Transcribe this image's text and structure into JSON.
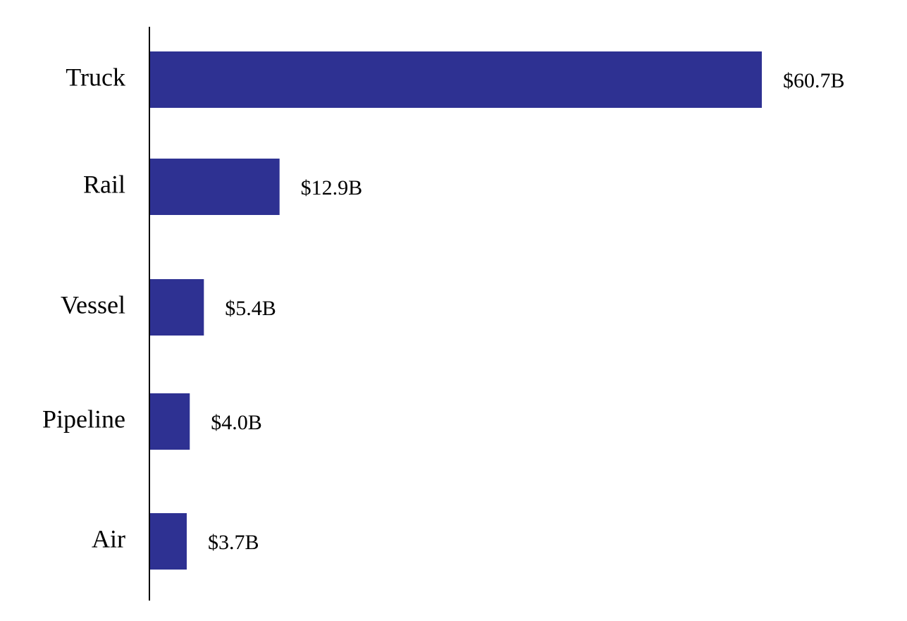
{
  "chart_data": {
    "type": "bar",
    "orientation": "horizontal",
    "categories": [
      "Truck",
      "Rail",
      "Vessel",
      "Pipeline",
      "Air"
    ],
    "values": [
      60.7,
      12.9,
      5.4,
      4.0,
      3.7
    ],
    "value_labels": [
      "$60.7B",
      "$12.9B",
      "$5.4B",
      "$4.0B",
      "$3.7B"
    ],
    "title": "",
    "xlabel": "",
    "ylabel": "",
    "xlim": [
      0,
      60.7
    ],
    "grid": false,
    "legend": "none",
    "bar_color": "#2e3192",
    "axis_color": "#000000"
  }
}
